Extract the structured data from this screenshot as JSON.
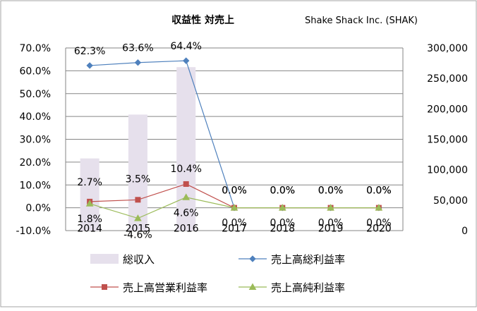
{
  "chart_data": {
    "type": "bar",
    "title": "収益性 対売上",
    "subtitle": "Shake Shack Inc. (SHAK)",
    "categories": [
      "2014",
      "2015",
      "2016",
      "2017",
      "2018",
      "2019",
      "2020"
    ],
    "bar_series": {
      "name": "総収入",
      "values": [
        118530,
        190592,
        268475,
        0,
        0,
        0,
        0
      ],
      "color": "#e6e0ec",
      "axis": "right"
    },
    "line_series": [
      {
        "name": "売上高総利益率",
        "values": [
          62.3,
          63.6,
          64.4,
          0.0,
          0.0,
          0.0,
          0.0
        ],
        "labels": [
          "62.3%",
          "63.6%",
          "64.4%",
          "0.0%",
          "0.0%",
          "0.0%",
          "0.0%"
        ],
        "color": "#4f81bd",
        "marker": "diamond"
      },
      {
        "name": "売上高営業利益率",
        "values": [
          2.7,
          3.5,
          10.4,
          0.0,
          0.0,
          0.0,
          0.0
        ],
        "labels": [
          "2.7%",
          "3.5%",
          "10.4%",
          "0.0%",
          "0.0%",
          "0.0%",
          "0.0%"
        ],
        "color": "#c0504d",
        "marker": "square"
      },
      {
        "name": "売上高純利益率",
        "values": [
          1.8,
          -4.6,
          4.6,
          0.0,
          0.0,
          0.0,
          0.0
        ],
        "labels": [
          "1.8%",
          "-4.6%",
          "4.6%",
          "0.0%",
          "0.0%",
          "0.0%",
          "0.0%"
        ],
        "color": "#9bbb59",
        "marker": "triangle"
      }
    ],
    "y_left": {
      "ylim": [
        -10,
        70
      ],
      "ticks": [
        -10,
        0,
        10,
        20,
        30,
        40,
        50,
        60,
        70
      ],
      "tick_labels": [
        "-10.0%",
        "0.0%",
        "10.0%",
        "20.0%",
        "30.0%",
        "40.0%",
        "50.0%",
        "60.0%",
        "70.0%"
      ]
    },
    "y_right": {
      "ylim": [
        0,
        300000
      ],
      "ticks": [
        0,
        50000,
        100000,
        150000,
        200000,
        250000,
        300000
      ],
      "tick_labels": [
        "0",
        "50,000",
        "100,000",
        "150,000",
        "200,000",
        "250,000",
        "300,000"
      ]
    },
    "grid": true,
    "legend": {
      "position": "bottom",
      "entries": [
        "総収入",
        "売上高総利益率",
        "売上高営業利益率",
        "売上高純利益率"
      ]
    }
  }
}
